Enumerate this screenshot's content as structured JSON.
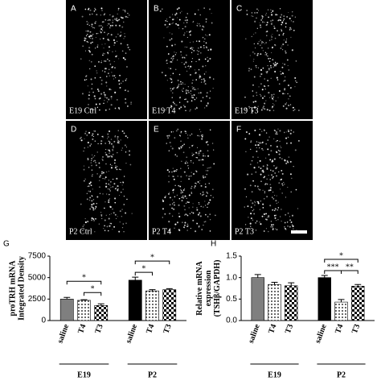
{
  "panels": [
    {
      "letter": "A",
      "label": "E19 Ctrl"
    },
    {
      "letter": "B",
      "label": "E19 T4"
    },
    {
      "letter": "C",
      "label": "E19 T3"
    },
    {
      "letter": "D",
      "label": "P2 Ctrl"
    },
    {
      "letter": "E",
      "label": "P2 T4"
    },
    {
      "letter": "F",
      "label": "P2 T3"
    }
  ],
  "chart_data": [
    {
      "type": "bar",
      "panel_letter": "G",
      "ylabel": [
        "proTRH mRNA",
        "Integrated Density"
      ],
      "categories": [
        "saline",
        "T4",
        "T3",
        "saline",
        "T4",
        "T3"
      ],
      "groups": [
        "E19",
        "P2"
      ],
      "values": [
        2500,
        2350,
        1750,
        4700,
        3450,
        3600
      ],
      "errors": [
        200,
        80,
        200,
        350,
        150,
        120
      ],
      "bar_fills": [
        "#7f7f7f",
        "dotted",
        "checkered",
        "#000000",
        "dotted",
        "checkered"
      ],
      "ylim": [
        0,
        7500
      ],
      "yticks": [
        0,
        2500,
        5000,
        7500
      ],
      "significance": [
        {
          "label": "*",
          "pair": [
            0,
            2
          ]
        },
        {
          "label": "*",
          "pair": [
            1,
            2
          ]
        },
        {
          "label": "*",
          "pair": [
            3,
            5
          ]
        },
        {
          "label": "*",
          "pair": [
            3,
            4
          ]
        }
      ]
    },
    {
      "type": "bar",
      "panel_letter": "H",
      "ylabel": [
        "Relative mRNA",
        "expression",
        "(TSHβ/GAPDH)"
      ],
      "categories": [
        "saline",
        "T4",
        "T3",
        "saline",
        "T4",
        "T3"
      ],
      "groups": [
        "E19",
        "P2"
      ],
      "values": [
        1.0,
        0.84,
        0.81,
        1.0,
        0.43,
        0.8
      ],
      "errors": [
        0.07,
        0.05,
        0.07,
        0.05,
        0.06,
        0.04
      ],
      "bar_fills": [
        "#7f7f7f",
        "dotted",
        "checkered",
        "#000000",
        "dotted",
        "checkered"
      ],
      "ylim": [
        0,
        1.5
      ],
      "yticks": [
        {
          "value": 0,
          "label": "0.0"
        },
        {
          "value": 0.5,
          "label": "0.5"
        },
        {
          "value": 1,
          "label": "1.0"
        },
        {
          "value": 1.5,
          "label": "1.5"
        }
      ],
      "significance": [
        {
          "label": "*",
          "pair": [
            3,
            5
          ]
        },
        {
          "label": "***",
          "pair": [
            3,
            4
          ]
        },
        {
          "label": "**",
          "pair": [
            4,
            5
          ]
        }
      ]
    }
  ]
}
